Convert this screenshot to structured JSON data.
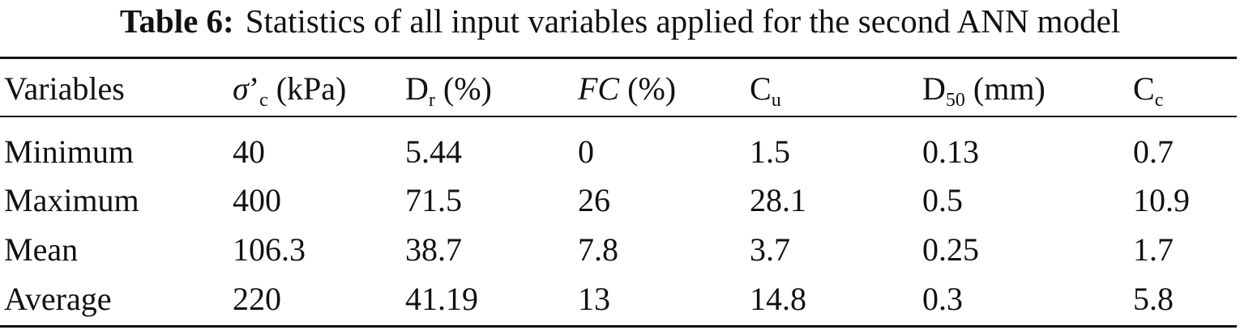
{
  "caption": {
    "label": "Table 6:",
    "text": "Statistics of all input variables applied for the second ANN model"
  },
  "header": {
    "variables": "Variables",
    "sigma_symbol": "σ",
    "sigma_prime": "’",
    "sigma_sub": "c",
    "sigma_unit": " (kPa)",
    "dr_main": "D",
    "dr_sub": "r",
    "dr_unit": " (%)",
    "fc_main": "FC",
    "fc_unit": " (%)",
    "cu_main": "C",
    "cu_sub": "u",
    "d50_main": "D",
    "d50_sub": "50",
    "d50_unit": " (mm)",
    "cc_main": "C",
    "cc_sub": "c"
  },
  "rows": [
    {
      "label": "Minimum",
      "values": [
        "40",
        "5.44",
        "0",
        "1.5",
        "0.13",
        "0.7"
      ]
    },
    {
      "label": "Maximum",
      "values": [
        "400",
        "71.5",
        "26",
        "28.1",
        "0.5",
        "10.9"
      ]
    },
    {
      "label": "Mean",
      "values": [
        "106.3",
        "38.7",
        "7.8",
        "3.7",
        "0.25",
        "1.7"
      ]
    },
    {
      "label": "Average",
      "values": [
        "220",
        "41.19",
        "13",
        "14.8",
        "0.3",
        "5.8"
      ]
    }
  ]
}
